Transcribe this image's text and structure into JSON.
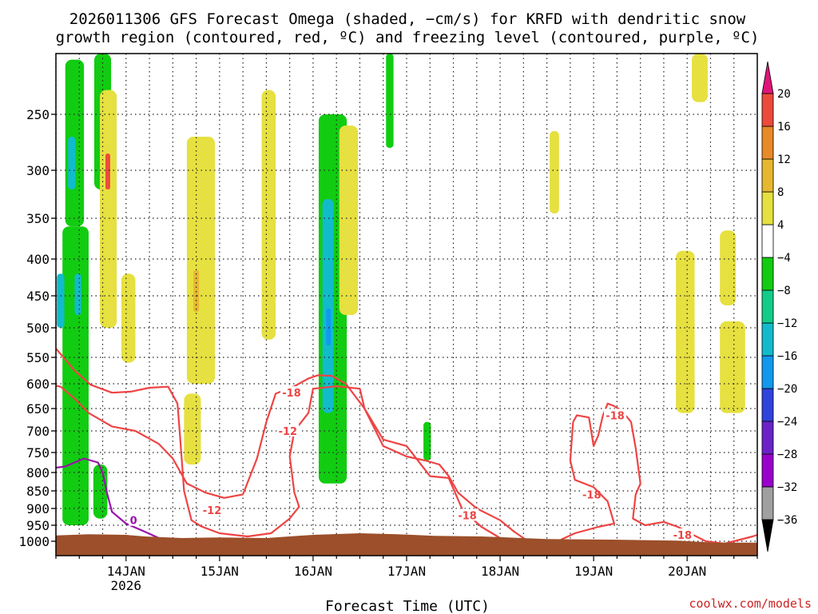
{
  "chart_data": {
    "type": "heatmap",
    "title_line1": "2026011306 GFS Forecast Omega (shaded, −cm/s) for KRFD with dendritic snow",
    "title_line2": "growth region (contoured, red, ºC) and freezing level (contoured, purple, ºC)",
    "xlabel": "Forecast Time (UTC)",
    "credit": "coolwx.com/models",
    "x_range_days": [
      13.25,
      20.75
    ],
    "x_ticks": [
      {
        "label": "14JAN",
        "value": 14,
        "sub": "2026"
      },
      {
        "label": "15JAN",
        "value": 15
      },
      {
        "label": "16JAN",
        "value": 16
      },
      {
        "label": "17JAN",
        "value": 17
      },
      {
        "label": "18JAN",
        "value": 18
      },
      {
        "label": "19JAN",
        "value": 19
      },
      {
        "label": "20JAN",
        "value": 20
      }
    ],
    "y_axis": "pressure (hPa), inverted",
    "y_range": [
      200,
      1030
    ],
    "y_ticks": [
      250,
      300,
      350,
      400,
      450,
      500,
      550,
      600,
      650,
      700,
      750,
      800,
      850,
      900,
      950,
      1000
    ],
    "grid": true,
    "colorbar": {
      "levels": [
        -36,
        -32,
        -28,
        -24,
        -20,
        -16,
        -12,
        -8,
        -4,
        4,
        8,
        12,
        16,
        20
      ],
      "colors": {
        "lt_m36": "#000000",
        "m36_m32": "#a0a0a0",
        "m32_m28": "#9900cc",
        "m28_m24": "#6a22c8",
        "m24_m20": "#2e44dd",
        "m20_m16": "#1199ee",
        "m16_m12": "#11bbcc",
        "m12_m8": "#11cc88",
        "m8_m4": "#11cc11",
        "m4_4": "#ffffff",
        "4_8": "#e6e040",
        "8_12": "#e6b830",
        "12_16": "#e88a28",
        "16_20": "#ec4a3c",
        "gt_20": "#e0157a"
      }
    },
    "shaded_regions": [
      {
        "value": -6,
        "x": [
          13.32,
          13.6
        ],
        "p": [
          360,
          950
        ]
      },
      {
        "value": -6,
        "x": [
          13.35,
          13.55
        ],
        "p": [
          205,
          360
        ]
      },
      {
        "value": -14,
        "x": [
          13.38,
          13.46
        ],
        "p": [
          270,
          320
        ]
      },
      {
        "value": -14,
        "x": [
          13.26,
          13.34
        ],
        "p": [
          420,
          500
        ]
      },
      {
        "value": -14,
        "x": [
          13.45,
          13.52
        ],
        "p": [
          420,
          480
        ]
      },
      {
        "value": -6,
        "x": [
          13.66,
          13.84
        ],
        "p": [
          190,
          320
        ]
      },
      {
        "value": 6,
        "x": [
          13.72,
          13.9
        ],
        "p": [
          230,
          500
        ]
      },
      {
        "value": 18,
        "x": [
          13.78,
          13.83
        ],
        "p": [
          285,
          320
        ]
      },
      {
        "value": -6,
        "x": [
          13.65,
          13.8
        ],
        "p": [
          780,
          930
        ]
      },
      {
        "value": 5,
        "x": [
          13.95,
          14.1
        ],
        "p": [
          420,
          560
        ]
      },
      {
        "value": 5,
        "x": [
          14.65,
          14.95
        ],
        "p": [
          270,
          600
        ]
      },
      {
        "value": 9,
        "x": [
          14.72,
          14.78
        ],
        "p": [
          415,
          475
        ]
      },
      {
        "value": 5,
        "x": [
          14.62,
          14.8
        ],
        "p": [
          620,
          780
        ]
      },
      {
        "value": 5,
        "x": [
          15.45,
          15.6
        ],
        "p": [
          230,
          520
        ]
      },
      {
        "value": -6,
        "x": [
          16.06,
          16.36
        ],
        "p": [
          250,
          830
        ]
      },
      {
        "value": -14,
        "x": [
          16.1,
          16.22
        ],
        "p": [
          330,
          660
        ]
      },
      {
        "value": -18,
        "x": [
          16.14,
          16.19
        ],
        "p": [
          470,
          530
        ]
      },
      {
        "value": 5,
        "x": [
          16.28,
          16.48
        ],
        "p": [
          260,
          480
        ]
      },
      {
        "value": -6,
        "x": [
          16.78,
          16.86
        ],
        "p": [
          200,
          280
        ]
      },
      {
        "value": -6,
        "x": [
          17.18,
          17.26
        ],
        "p": [
          680,
          770
        ]
      },
      {
        "value": 5,
        "x": [
          18.53,
          18.63
        ],
        "p": [
          265,
          345
        ]
      },
      {
        "value": 5,
        "x": [
          19.88,
          20.08
        ],
        "p": [
          390,
          660
        ]
      },
      {
        "value": 5,
        "x": [
          20.05,
          20.22
        ],
        "p": [
          200,
          240
        ]
      },
      {
        "value": 5,
        "x": [
          20.35,
          20.52
        ],
        "p": [
          365,
          465
        ]
      },
      {
        "value": 5,
        "x": [
          20.35,
          20.62
        ],
        "p": [
          490,
          660
        ]
      }
    ],
    "contours": [
      {
        "value": -12,
        "color": "#ee4444",
        "label": "-12",
        "points": [
          [
            13.25,
            535
          ],
          [
            13.45,
            575
          ],
          [
            13.62,
            602
          ],
          [
            13.85,
            618
          ],
          [
            14.05,
            616
          ],
          [
            14.25,
            608
          ],
          [
            14.45,
            606
          ],
          [
            14.55,
            640
          ],
          [
            14.58,
            720
          ],
          [
            14.62,
            850
          ],
          [
            14.7,
            935
          ],
          [
            14.8,
            953
          ],
          [
            15.0,
            975
          ],
          [
            15.3,
            985
          ],
          [
            15.55,
            975
          ],
          [
            15.75,
            930
          ],
          [
            15.85,
            895
          ],
          [
            15.8,
            855
          ],
          [
            15.75,
            760
          ],
          [
            15.8,
            700
          ],
          [
            15.95,
            660
          ],
          [
            16.0,
            610
          ],
          [
            16.25,
            605
          ],
          [
            16.5,
            610
          ],
          [
            16.55,
            650
          ],
          [
            16.75,
            720
          ],
          [
            17.0,
            735
          ],
          [
            17.25,
            810
          ],
          [
            17.45,
            815
          ],
          [
            17.6,
            905
          ],
          [
            17.8,
            955
          ],
          [
            18.0,
            990
          ],
          [
            18.2,
            1000
          ]
        ],
        "labels": [
          [
            14.92,
            905
          ],
          [
            15.73,
            700
          ]
        ]
      },
      {
        "value": -18,
        "color": "#ee4444",
        "label": "-18",
        "points": [
          [
            13.25,
            604
          ],
          [
            13.3,
            606
          ],
          [
            13.45,
            630
          ],
          [
            13.6,
            660
          ],
          [
            13.85,
            690
          ],
          [
            14.1,
            700
          ],
          [
            14.35,
            730
          ],
          [
            14.5,
            765
          ],
          [
            14.65,
            830
          ],
          [
            14.85,
            855
          ],
          [
            15.05,
            870
          ],
          [
            15.25,
            860
          ],
          [
            15.4,
            765
          ],
          [
            15.5,
            680
          ],
          [
            15.6,
            620
          ],
          [
            15.8,
            605
          ],
          [
            15.95,
            590
          ],
          [
            16.05,
            584
          ],
          [
            16.2,
            585
          ],
          [
            16.35,
            600
          ],
          [
            16.55,
            650
          ],
          [
            16.75,
            735
          ],
          [
            17.0,
            760
          ],
          [
            17.2,
            770
          ],
          [
            17.35,
            780
          ],
          [
            17.45,
            810
          ],
          [
            17.55,
            855
          ],
          [
            17.75,
            900
          ],
          [
            18.0,
            935
          ],
          [
            18.15,
            970
          ],
          [
            18.3,
            1000
          ]
        ],
        "labels": [
          [
            15.77,
            618
          ],
          [
            17.65,
            920
          ]
        ]
      },
      {
        "value": -18,
        "color": "#ee4444",
        "label": "-18",
        "points": [
          [
            18.78,
            680
          ],
          [
            18.82,
            665
          ],
          [
            18.95,
            670
          ],
          [
            19.0,
            735
          ],
          [
            19.05,
            710
          ],
          [
            19.1,
            665
          ],
          [
            19.15,
            640
          ],
          [
            19.22,
            645
          ],
          [
            19.3,
            655
          ],
          [
            19.4,
            680
          ],
          [
            19.45,
            740
          ],
          [
            19.5,
            830
          ],
          [
            19.45,
            860
          ],
          [
            19.42,
            930
          ],
          [
            19.55,
            950
          ],
          [
            19.75,
            940
          ],
          [
            19.9,
            955
          ],
          [
            20.05,
            978
          ],
          [
            20.2,
            1000
          ],
          [
            20.4,
            1005
          ],
          [
            20.7,
            985
          ],
          [
            20.75,
            980
          ]
        ],
        "labels": [
          [
            19.23,
            665
          ],
          [
            18.98,
            860
          ],
          [
            19.95,
            980
          ]
        ]
      },
      {
        "value": -18,
        "color": "#ee4444",
        "label": "-18",
        "points": [
          [
            18.78,
            680
          ],
          [
            18.75,
            770
          ],
          [
            18.8,
            820
          ],
          [
            19.0,
            840
          ],
          [
            19.15,
            880
          ],
          [
            19.22,
            945
          ],
          [
            19.05,
            955
          ],
          [
            18.8,
            975
          ],
          [
            18.65,
            995
          ]
        ]
      },
      {
        "value": 0,
        "color": "#9911aa",
        "label": "0",
        "points": [
          [
            13.25,
            788
          ],
          [
            13.35,
            785
          ],
          [
            13.55,
            765
          ],
          [
            13.7,
            775
          ],
          [
            13.75,
            800
          ],
          [
            13.8,
            860
          ],
          [
            13.85,
            910
          ],
          [
            14.0,
            945
          ],
          [
            14.2,
            970
          ],
          [
            14.35,
            990
          ]
        ],
        "labels": [
          [
            14.08,
            935
          ]
        ]
      },
      {
        "value": 0,
        "color": "#9911aa",
        "label": "",
        "points": [
          [
            16.72,
            992
          ],
          [
            16.78,
            982
          ],
          [
            16.9,
            985
          ],
          [
            16.95,
            992
          ]
        ]
      }
    ],
    "terrain": [
      [
        13.25,
        982
      ],
      [
        13.6,
        978
      ],
      [
        14.0,
        980
      ],
      [
        14.2,
        985
      ],
      [
        14.6,
        990
      ],
      [
        15.0,
        988
      ],
      [
        15.5,
        990
      ],
      [
        16.0,
        980
      ],
      [
        16.5,
        975
      ],
      [
        16.9,
        978
      ],
      [
        17.3,
        983
      ],
      [
        17.8,
        985
      ],
      [
        18.5,
        993
      ],
      [
        19.2,
        995
      ],
      [
        19.9,
        998
      ],
      [
        20.3,
        1003
      ],
      [
        20.75,
        1003
      ]
    ]
  }
}
